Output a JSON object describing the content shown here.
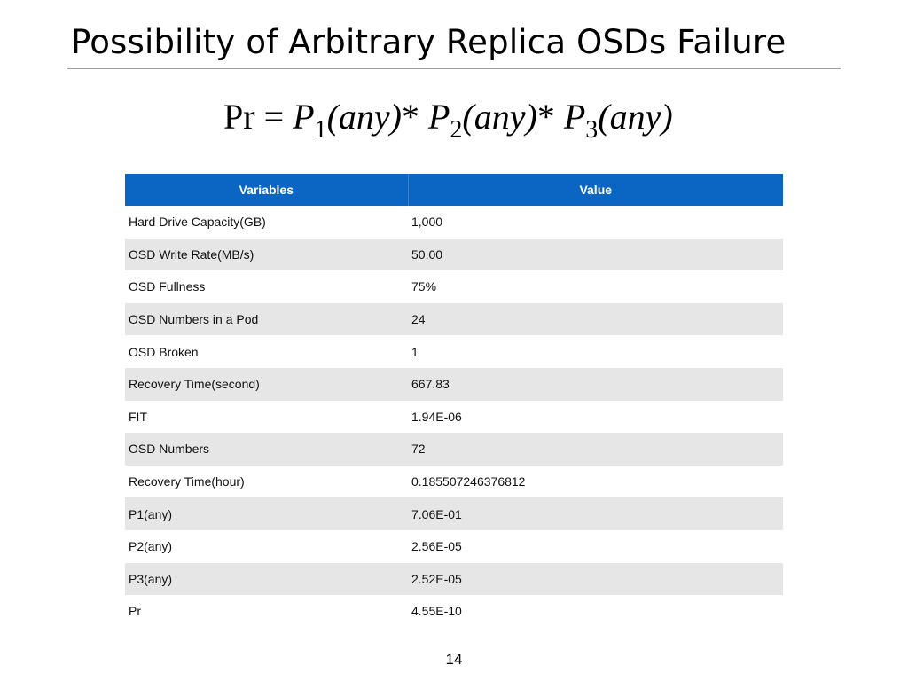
{
  "slide": {
    "title": "Possibility of Arbitrary Replica OSDs Failure",
    "page_number": "14"
  },
  "formula": {
    "lhs": "Pr",
    "eq": " = ",
    "terms": [
      {
        "var": "P",
        "sub": "1",
        "arg": "(any)"
      },
      {
        "var": "P",
        "sub": "2",
        "arg": "(any)"
      },
      {
        "var": "P",
        "sub": "3",
        "arg": "(any)"
      }
    ],
    "op": "*"
  },
  "table": {
    "headers": [
      "Variables",
      "Value"
    ],
    "rows": [
      {
        "variable": "Hard Drive Capacity(GB)",
        "value": "1,000"
      },
      {
        "variable": "OSD Write Rate(MB/s)",
        "value": "50.00"
      },
      {
        "variable": "OSD Fullness",
        "value": "75%"
      },
      {
        "variable": "OSD Numbers in a Pod",
        "value": "24"
      },
      {
        "variable": "OSD Broken",
        "value": "1"
      },
      {
        "variable": "Recovery Time(second)",
        "value": "667.83"
      },
      {
        "variable": "FIT",
        "value": "1.94E-06"
      },
      {
        "variable": "OSD Numbers",
        "value": "72"
      },
      {
        "variable": "Recovery Time(hour)",
        "value": "0.185507246376812"
      },
      {
        "variable": "P1(any)",
        "value": "7.06E-01"
      },
      {
        "variable": "P2(any)",
        "value": "2.56E-05"
      },
      {
        "variable": "P3(any)",
        "value": "2.52E-05"
      },
      {
        "variable": "Pr",
        "value": "4.55E-10"
      }
    ]
  },
  "colors": {
    "header_bg": "#0a66c2",
    "row_shade": "#e6e6e6"
  }
}
